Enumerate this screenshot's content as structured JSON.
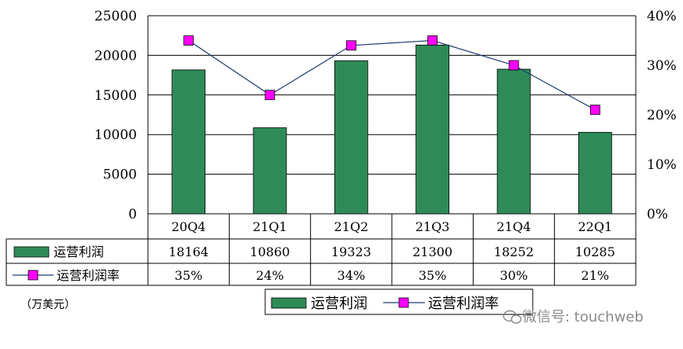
{
  "chart_data": {
    "type": "bar",
    "categories": [
      "20Q4",
      "21Q1",
      "21Q2",
      "21Q3",
      "21Q4",
      "22Q1"
    ],
    "series": [
      {
        "name": "运营利润",
        "type": "bar",
        "axis": "left",
        "values": [
          18164,
          10860,
          19323,
          21300,
          18252,
          10285
        ],
        "color": "#2e8b57"
      },
      {
        "name": "运营利润率",
        "type": "line",
        "axis": "right",
        "values": [
          35,
          24,
          34,
          35,
          30,
          21
        ],
        "color": "#ff00ff",
        "line_color": "#1f3b73"
      }
    ],
    "table_values": {
      "operating_profit": [
        "18164",
        "10860",
        "19323",
        "21300",
        "18252",
        "10285"
      ],
      "operating_margin": [
        "35%",
        "24%",
        "34%",
        "35%",
        "30%",
        "21%"
      ]
    },
    "y_left": {
      "lim": [
        0,
        25000
      ],
      "ticks": [
        0,
        5000,
        10000,
        15000,
        20000,
        25000
      ],
      "tick_labels": [
        "0",
        "5000",
        "10000",
        "15000",
        "20000",
        "25000"
      ]
    },
    "y_right": {
      "lim": [
        0,
        40
      ],
      "ticks": [
        0,
        10,
        20,
        30,
        40
      ],
      "tick_labels": [
        "0%",
        "10%",
        "20%",
        "30%",
        "40%"
      ]
    },
    "grid": true,
    "legend_position": "bottom-center",
    "unit_label": "（万美元）"
  },
  "legend": {
    "bar_label": "运营利润",
    "line_label": "运营利润率"
  },
  "watermark": {
    "text": "微信号: touchweb"
  },
  "colors": {
    "bar": "#2e8b57",
    "marker": "#ff00ff",
    "line": "#1f3b73",
    "grid": "#000000"
  }
}
